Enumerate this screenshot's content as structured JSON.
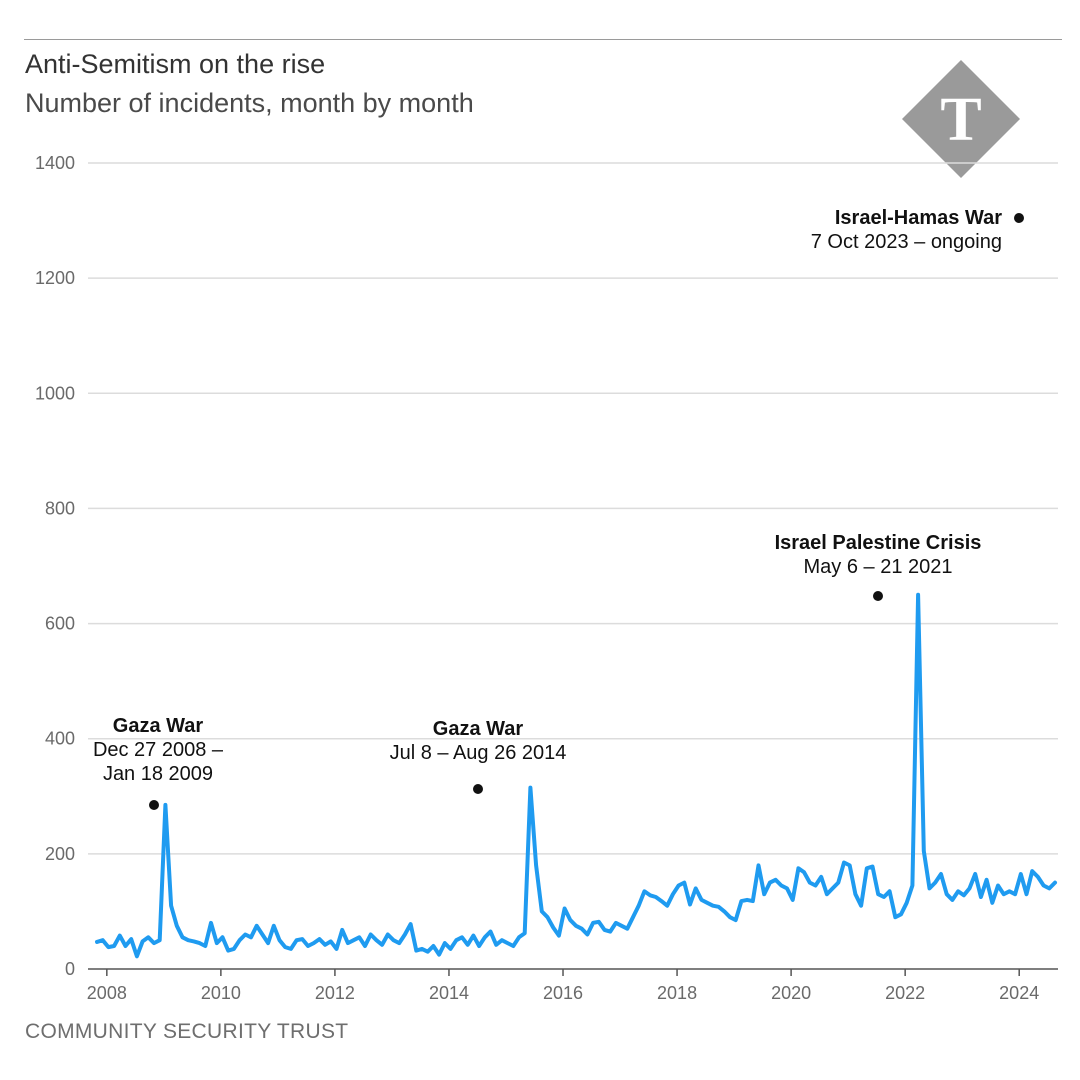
{
  "header": {
    "title": "Anti-Semitism on the rise",
    "subtitle": "Number of incidents, month by month"
  },
  "footer": {
    "source": "COMMUNITY SECURITY TRUST"
  },
  "logo": {
    "icon": "telegraph-t-logo",
    "letter": "T",
    "color": "#9a9a9a"
  },
  "colors": {
    "line": "#1f9bf0",
    "grid": "#dcdcdc",
    "axis": "#555555",
    "marker": "#111111"
  },
  "chart_data": {
    "type": "line",
    "title": "Anti-Semitism on the rise",
    "subtitle": "Number of incidents, month by month",
    "xlabel": "",
    "ylabel": "",
    "ylim": [
      0,
      1400
    ],
    "xlim": [
      2007.6,
      2024.5
    ],
    "yticks": [
      0,
      200,
      400,
      600,
      800,
      1000,
      1200,
      1400
    ],
    "xticks": [
      2008,
      2010,
      2012,
      2014,
      2016,
      2018,
      2020,
      2022,
      2024
    ],
    "grid": "horizontal",
    "series": [
      {
        "values": [
          [
            2007.6,
            47
          ],
          [
            2007.7,
            50
          ],
          [
            2007.8,
            38
          ],
          [
            2007.9,
            40
          ],
          [
            2008.0,
            58
          ],
          [
            2008.1,
            40
          ],
          [
            2008.2,
            52
          ],
          [
            2008.3,
            22
          ],
          [
            2008.4,
            48
          ],
          [
            2008.5,
            55
          ],
          [
            2008.6,
            45
          ],
          [
            2008.7,
            50
          ],
          [
            2008.8,
            285
          ],
          [
            2008.9,
            110
          ],
          [
            2009.0,
            75
          ],
          [
            2009.1,
            55
          ],
          [
            2009.2,
            50
          ],
          [
            2009.3,
            48
          ],
          [
            2009.4,
            45
          ],
          [
            2009.5,
            40
          ],
          [
            2009.6,
            80
          ],
          [
            2009.7,
            45
          ],
          [
            2009.8,
            55
          ],
          [
            2009.9,
            32
          ],
          [
            2010.0,
            35
          ],
          [
            2010.1,
            50
          ],
          [
            2010.2,
            60
          ],
          [
            2010.3,
            55
          ],
          [
            2010.4,
            75
          ],
          [
            2010.5,
            60
          ],
          [
            2010.6,
            45
          ],
          [
            2010.7,
            75
          ],
          [
            2010.8,
            50
          ],
          [
            2010.9,
            38
          ],
          [
            2011.0,
            35
          ],
          [
            2011.1,
            50
          ],
          [
            2011.2,
            52
          ],
          [
            2011.3,
            40
          ],
          [
            2011.4,
            45
          ],
          [
            2011.5,
            52
          ],
          [
            2011.6,
            42
          ],
          [
            2011.7,
            48
          ],
          [
            2011.8,
            35
          ],
          [
            2011.9,
            68
          ],
          [
            2012.0,
            45
          ],
          [
            2012.1,
            50
          ],
          [
            2012.2,
            55
          ],
          [
            2012.3,
            40
          ],
          [
            2012.4,
            60
          ],
          [
            2012.5,
            50
          ],
          [
            2012.6,
            42
          ],
          [
            2012.7,
            60
          ],
          [
            2012.8,
            50
          ],
          [
            2012.9,
            45
          ],
          [
            2013.0,
            60
          ],
          [
            2013.1,
            78
          ],
          [
            2013.2,
            32
          ],
          [
            2013.3,
            35
          ],
          [
            2013.4,
            30
          ],
          [
            2013.5,
            40
          ],
          [
            2013.6,
            25
          ],
          [
            2013.7,
            45
          ],
          [
            2013.8,
            35
          ],
          [
            2013.9,
            50
          ],
          [
            2014.0,
            55
          ],
          [
            2014.1,
            42
          ],
          [
            2014.2,
            58
          ],
          [
            2014.3,
            40
          ],
          [
            2014.4,
            55
          ],
          [
            2014.5,
            65
          ],
          [
            2014.6,
            42
          ],
          [
            2014.7,
            50
          ],
          [
            2014.8,
            45
          ],
          [
            2014.9,
            40
          ],
          [
            2015.0,
            55
          ],
          [
            2015.1,
            62
          ],
          [
            2015.2,
            315
          ],
          [
            2015.3,
            180
          ],
          [
            2015.4,
            100
          ],
          [
            2015.5,
            90
          ],
          [
            2015.6,
            72
          ],
          [
            2015.7,
            58
          ],
          [
            2015.8,
            105
          ],
          [
            2015.9,
            85
          ],
          [
            2016.0,
            75
          ],
          [
            2016.1,
            70
          ],
          [
            2016.2,
            60
          ],
          [
            2016.3,
            80
          ],
          [
            2016.4,
            82
          ],
          [
            2016.5,
            68
          ],
          [
            2016.6,
            65
          ],
          [
            2016.7,
            80
          ],
          [
            2016.8,
            75
          ],
          [
            2016.9,
            70
          ],
          [
            2017.0,
            90
          ],
          [
            2017.1,
            110
          ],
          [
            2017.2,
            135
          ],
          [
            2017.3,
            128
          ],
          [
            2017.4,
            125
          ],
          [
            2017.5,
            118
          ],
          [
            2017.6,
            110
          ],
          [
            2017.7,
            130
          ],
          [
            2017.8,
            145
          ],
          [
            2017.9,
            150
          ],
          [
            2018.0,
            112
          ],
          [
            2018.1,
            140
          ],
          [
            2018.2,
            120
          ],
          [
            2018.3,
            115
          ],
          [
            2018.4,
            110
          ],
          [
            2018.5,
            108
          ],
          [
            2018.6,
            100
          ],
          [
            2018.7,
            90
          ],
          [
            2018.8,
            85
          ],
          [
            2018.9,
            118
          ],
          [
            2019.0,
            120
          ],
          [
            2019.1,
            118
          ],
          [
            2019.2,
            180
          ],
          [
            2019.3,
            130
          ],
          [
            2019.4,
            150
          ],
          [
            2019.5,
            155
          ],
          [
            2019.6,
            145
          ],
          [
            2019.7,
            140
          ],
          [
            2019.8,
            120
          ],
          [
            2019.9,
            175
          ],
          [
            2020.0,
            168
          ],
          [
            2020.1,
            150
          ],
          [
            2020.2,
            145
          ],
          [
            2020.3,
            160
          ],
          [
            2020.4,
            130
          ],
          [
            2020.5,
            140
          ],
          [
            2020.6,
            150
          ],
          [
            2020.7,
            185
          ],
          [
            2020.8,
            180
          ],
          [
            2020.9,
            130
          ],
          [
            2021.0,
            110
          ],
          [
            2021.1,
            175
          ],
          [
            2021.2,
            178
          ],
          [
            2021.3,
            130
          ],
          [
            2021.4,
            125
          ],
          [
            2021.5,
            135
          ],
          [
            2021.6,
            90
          ],
          [
            2021.7,
            95
          ],
          [
            2021.8,
            115
          ],
          [
            2021.9,
            145
          ],
          [
            2022.0,
            650
          ],
          [
            2022.1,
            205
          ],
          [
            2022.2,
            140
          ],
          [
            2022.3,
            150
          ],
          [
            2022.4,
            165
          ],
          [
            2022.5,
            130
          ],
          [
            2022.6,
            120
          ],
          [
            2022.7,
            135
          ],
          [
            2022.8,
            128
          ],
          [
            2022.9,
            140
          ],
          [
            2023.0,
            165
          ],
          [
            2023.1,
            125
          ],
          [
            2023.2,
            155
          ],
          [
            2023.3,
            115
          ],
          [
            2023.4,
            145
          ],
          [
            2023.5,
            130
          ],
          [
            2023.6,
            135
          ],
          [
            2023.7,
            130
          ],
          [
            2023.8,
            165
          ],
          [
            2023.9,
            130
          ],
          [
            2024.0,
            170
          ],
          [
            2024.1,
            160
          ],
          [
            2024.2,
            145
          ],
          [
            2024.3,
            140
          ],
          [
            2024.4,
            150
          ]
        ]
      }
    ],
    "annotations": [
      {
        "title": "Gaza War",
        "lines": [
          "Dec 27 2008 –",
          "Jan 18 2009"
        ],
        "x": 2008.8,
        "y": 285
      },
      {
        "title": "Gaza War",
        "lines": [
          "Jul 8 – Aug 26 2014"
        ],
        "x": 2014.3,
        "y": 312
      },
      {
        "title": "Israel Palestine Crisis",
        "lines": [
          "May 6 – 21 2021"
        ],
        "x": 2021.3,
        "y": 650
      },
      {
        "title": "Israel-Hamas War",
        "lines": [
          "7 Oct 2023 – ongoing"
        ],
        "x": 2023.75,
        "y": 1305
      }
    ]
  }
}
